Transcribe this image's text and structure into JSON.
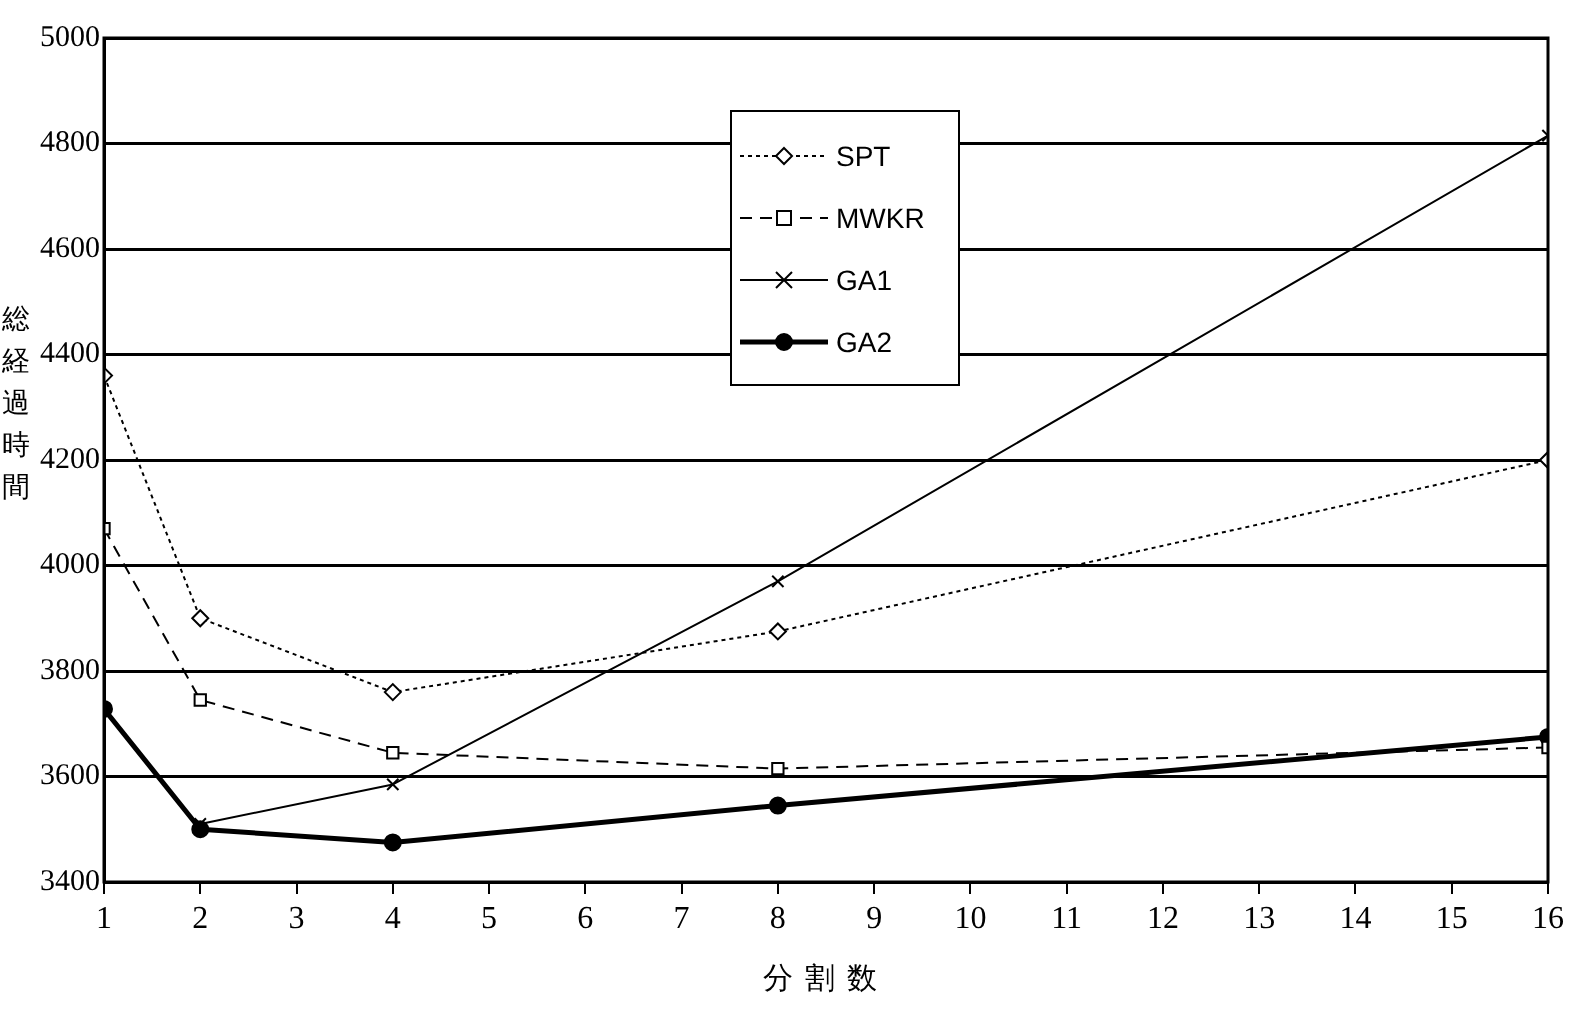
{
  "chart_data": {
    "type": "line",
    "xlabel": "分割数",
    "ylabel": "総経過時間",
    "xlim": [
      1,
      16
    ],
    "xticks": [
      1,
      2,
      3,
      4,
      5,
      6,
      7,
      8,
      9,
      10,
      11,
      12,
      13,
      14,
      15,
      16
    ],
    "ylim": [
      3400,
      5000
    ],
    "yticks": [
      3400,
      3600,
      3800,
      4000,
      4200,
      4400,
      4600,
      4800,
      5000
    ],
    "grid": "y",
    "legend": "top",
    "series": [
      {
        "name": "SPT",
        "color": "#000000",
        "marker": "diamond",
        "line_style": "dotted",
        "x": [
          1,
          2,
          4,
          8,
          16
        ],
        "values": [
          4360,
          3900,
          3760,
          3875,
          4200
        ]
      },
      {
        "name": "MWKR",
        "color": "#000000",
        "marker": "square",
        "line_style": "dashed",
        "x": [
          1,
          2,
          4,
          8,
          16
        ],
        "values": [
          4070,
          3745,
          3645,
          3615,
          3655
        ]
      },
      {
        "name": "GA1",
        "color": "#000000",
        "marker": "cross",
        "line_style": "solid",
        "x": [
          2,
          4,
          8,
          16
        ],
        "values": [
          3510,
          3585,
          3970,
          4815
        ]
      },
      {
        "name": "GA2",
        "color": "#000000",
        "marker": "circle",
        "line_style": "solid",
        "x": [
          1,
          2,
          4,
          8,
          16
        ],
        "values": [
          3728,
          3500,
          3475,
          3545,
          3675
        ]
      }
    ]
  }
}
